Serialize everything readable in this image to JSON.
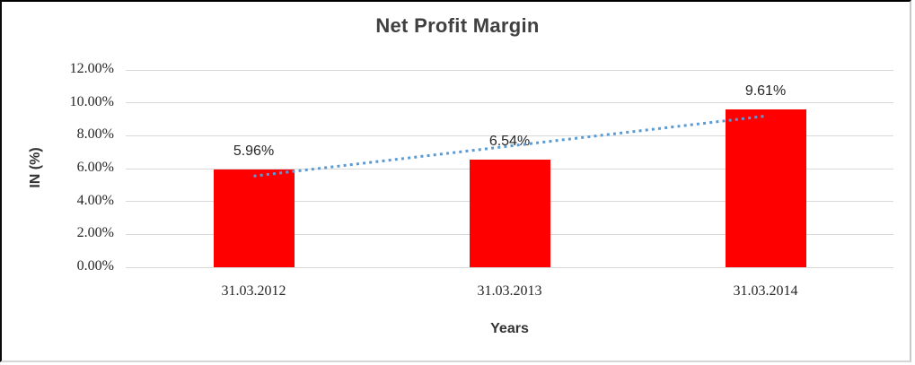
{
  "chart_data": {
    "type": "bar",
    "title": "Net Profit Margin",
    "categories": [
      "31.03.2012",
      "31.03.2013",
      "31.03.2014"
    ],
    "values": [
      5.96,
      6.54,
      9.61
    ],
    "data_labels": [
      "5.96%",
      "6.54%",
      "9.61%"
    ],
    "xlabel": "Years",
    "ylabel": "IN (%)",
    "ylim": [
      0,
      12
    ],
    "ytick_step": 2,
    "yticks": [
      "0.00%",
      "2.00%",
      "4.00%",
      "6.00%",
      "8.00%",
      "10.00%",
      "12.00%"
    ],
    "grid": true,
    "legend": false,
    "bar_color": "#ff0000",
    "gridline_color": "#d9d9d9",
    "trendline": {
      "type": "linear",
      "style": "dotted",
      "color": "#5b9bd5"
    }
  }
}
